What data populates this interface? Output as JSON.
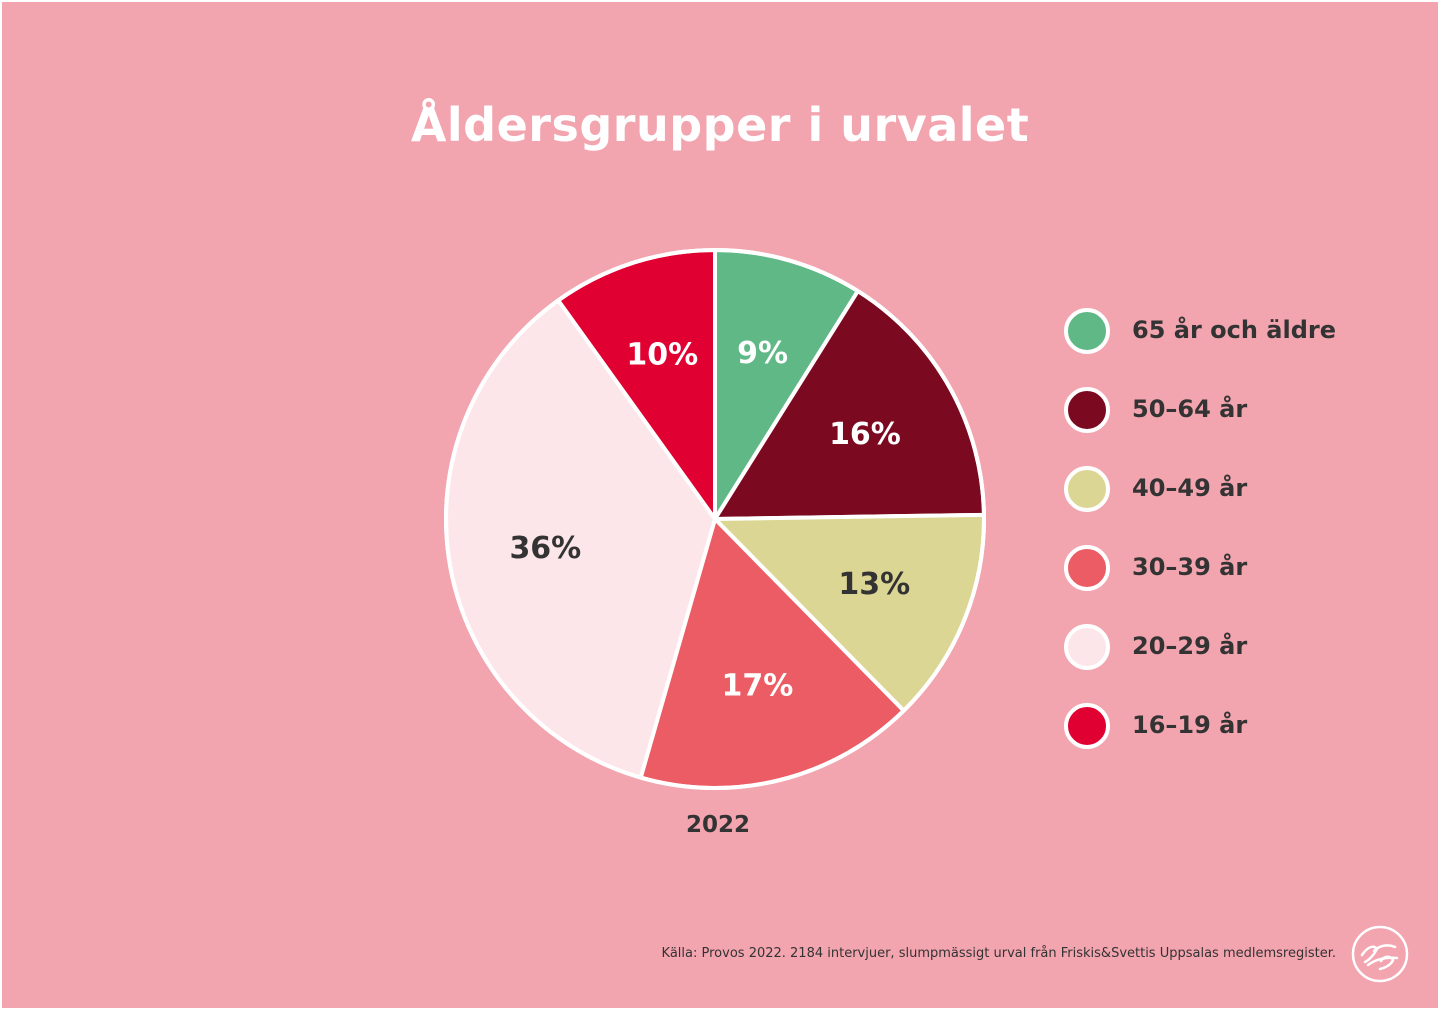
{
  "chart_data": {
    "type": "pie",
    "title": "Åldersgrupper i urvalet",
    "subtitle": "2022",
    "slices": [
      {
        "label": "65 år och äldre",
        "value": 9,
        "value_label": "9%",
        "color": "#5fb885",
        "text_color": "#ffffff"
      },
      {
        "label": "50–64 år",
        "value": 16,
        "value_label": "16%",
        "color": "#7b0a20",
        "text_color": "#ffffff"
      },
      {
        "label": "40–49 år",
        "value": 13,
        "value_label": "13%",
        "color": "#dcd694",
        "text_color": "#333333"
      },
      {
        "label": "30–39 år",
        "value": 17,
        "value_label": "17%",
        "color": "#eb5c64",
        "text_color": "#ffffff"
      },
      {
        "label": "20–29 år",
        "value": 36,
        "value_label": "36%",
        "color": "#fde6e9",
        "text_color": "#333333"
      },
      {
        "label": "16–19 år",
        "value": 10,
        "value_label": "10%",
        "color": "#e10032",
        "text_color": "#ffffff"
      }
    ],
    "legend": "right"
  },
  "footer": {
    "source": "Källa: Provos 2022. 2184 intervjuer, slumpmässigt urval från Friskis&Svettis Uppsalas medlemsregister.",
    "logo": "Friskis&Svettis"
  },
  "colors": {
    "background": "#f2a4af",
    "text": "#333333",
    "title": "#ffffff"
  }
}
